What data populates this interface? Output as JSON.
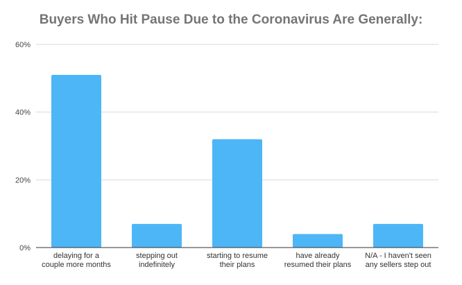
{
  "chart_data": {
    "type": "bar",
    "title": "Buyers Who Hit Pause Due to the Coronavirus Are Generally:",
    "xlabel": "",
    "ylabel": "",
    "categories": [
      [
        "delaying for a",
        "couple more months"
      ],
      [
        "stepping out",
        "indefinitely"
      ],
      [
        "starting to resume",
        "their plans"
      ],
      [
        "have already",
        "resumed their plans"
      ],
      [
        "N/A - I haven't seen",
        "any sellers step out"
      ]
    ],
    "values": [
      51,
      7,
      32,
      4,
      7
    ],
    "ylim": [
      0,
      60
    ],
    "yticks": [
      0,
      20,
      40,
      60
    ],
    "ytick_labels": [
      "0%",
      "20%",
      "40%",
      "60%"
    ],
    "bar_color": "#4db6f7",
    "grid": true,
    "legend": "none"
  }
}
